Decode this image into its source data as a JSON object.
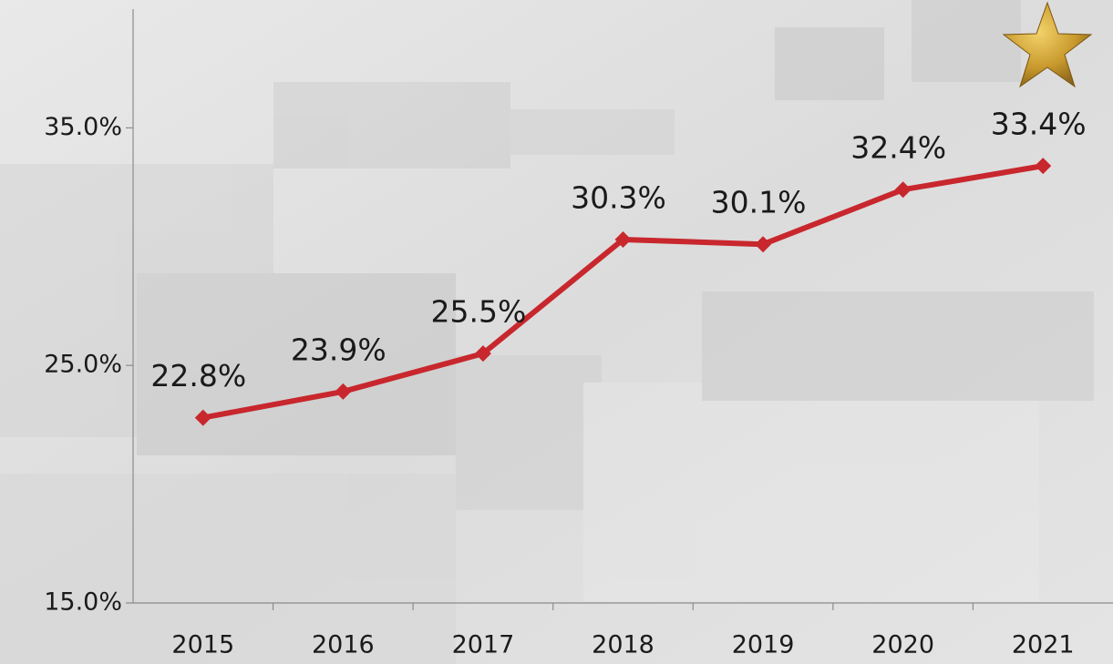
{
  "chart_data": {
    "type": "line",
    "categories": [
      "2015",
      "2016",
      "2017",
      "2018",
      "2019",
      "2020",
      "2021"
    ],
    "values": [
      22.8,
      23.9,
      25.5,
      30.3,
      30.1,
      32.4,
      33.4
    ],
    "value_labels": [
      "22.8%",
      "23.9%",
      "25.5%",
      "30.3%",
      "30.1%",
      "32.4%",
      "33.4%"
    ],
    "color": "#c8272d",
    "ylim": [
      15,
      40
    ],
    "yticks": [
      {
        "value": 15,
        "label": "15.0%"
      },
      {
        "value": 25,
        "label": "25.0%"
      },
      {
        "value": 35,
        "label": "35.0%"
      }
    ],
    "grid": false
  }
}
